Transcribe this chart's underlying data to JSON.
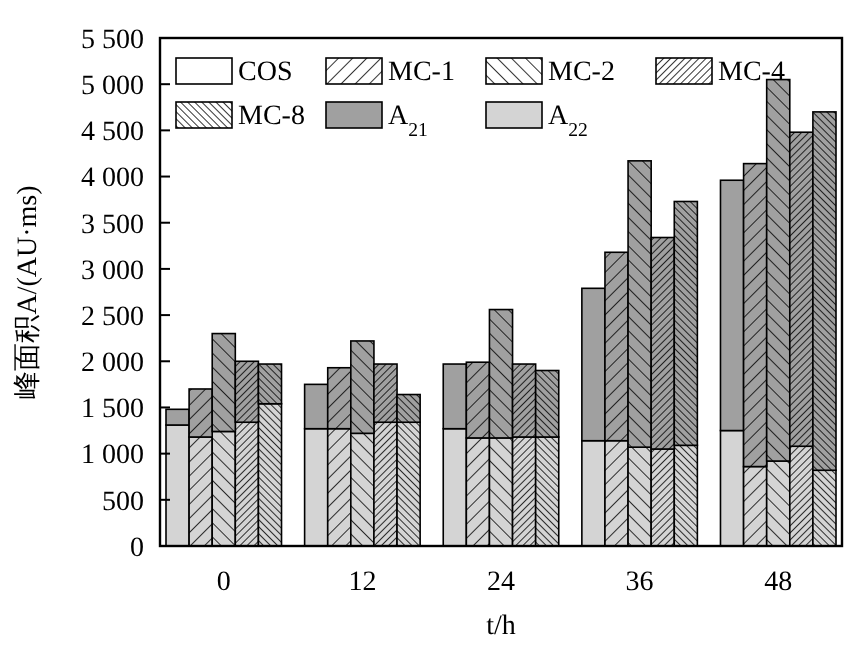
{
  "chart_data": {
    "type": "bar",
    "stacked": true,
    "xlabel": "t/h",
    "ylabel": "峰面积A/(AU·ms)",
    "categories": [
      null,
      null,
      "0",
      null,
      null,
      null,
      null,
      "12",
      null,
      null,
      null,
      null,
      "24",
      null,
      null,
      null,
      null,
      "36",
      null,
      null,
      null,
      null,
      "48",
      null,
      null
    ],
    "series": [
      {
        "name": "A$_{22}$",
        "color": "#d4d4d4",
        "values": [
          1310,
          1180,
          1240,
          1340,
          1540,
          1270,
          1270,
          1220,
          1340,
          1340,
          1270,
          1170,
          1170,
          1180,
          1180,
          1140,
          1140,
          1070,
          1050,
          1090,
          1250,
          860,
          920,
          1080,
          820
        ]
      },
      {
        "name": "A$_{21}$",
        "color": "#a0a0a0",
        "values": [
          170,
          520,
          1060,
          660,
          430,
          480,
          660,
          1000,
          630,
          300,
          700,
          820,
          1390,
          790,
          720,
          1650,
          2040,
          3100,
          2290,
          2640,
          2710,
          3280,
          4130,
          3400,
          3880
        ]
      }
    ],
    "annotations": [
      "COS",
      "MC-1",
      "MC-2",
      "MC-4",
      "MC-8"
    ],
    "ylim": [
      0,
      5500
    ],
    "yticks": [
      0,
      {
        "value": 500,
        "label": "500"
      },
      {
        "value": 1000,
        "label": "1 000"
      },
      {
        "value": 1500,
        "label": "1 500"
      },
      {
        "value": 2000,
        "label": "2 000"
      },
      {
        "value": 2500,
        "label": "2 500"
      },
      {
        "value": 3000,
        "label": "3 000"
      },
      {
        "value": 3500,
        "label": "3 500"
      },
      {
        "value": 4000,
        "label": "4 000"
      },
      {
        "value": 4500,
        "label": "4 500"
      },
      {
        "value": 5000,
        "label": "5 000"
      },
      {
        "value": 5500,
        "label": "5 500"
      }
    ],
    "legend": "top left",
    "grid": false
  }
}
